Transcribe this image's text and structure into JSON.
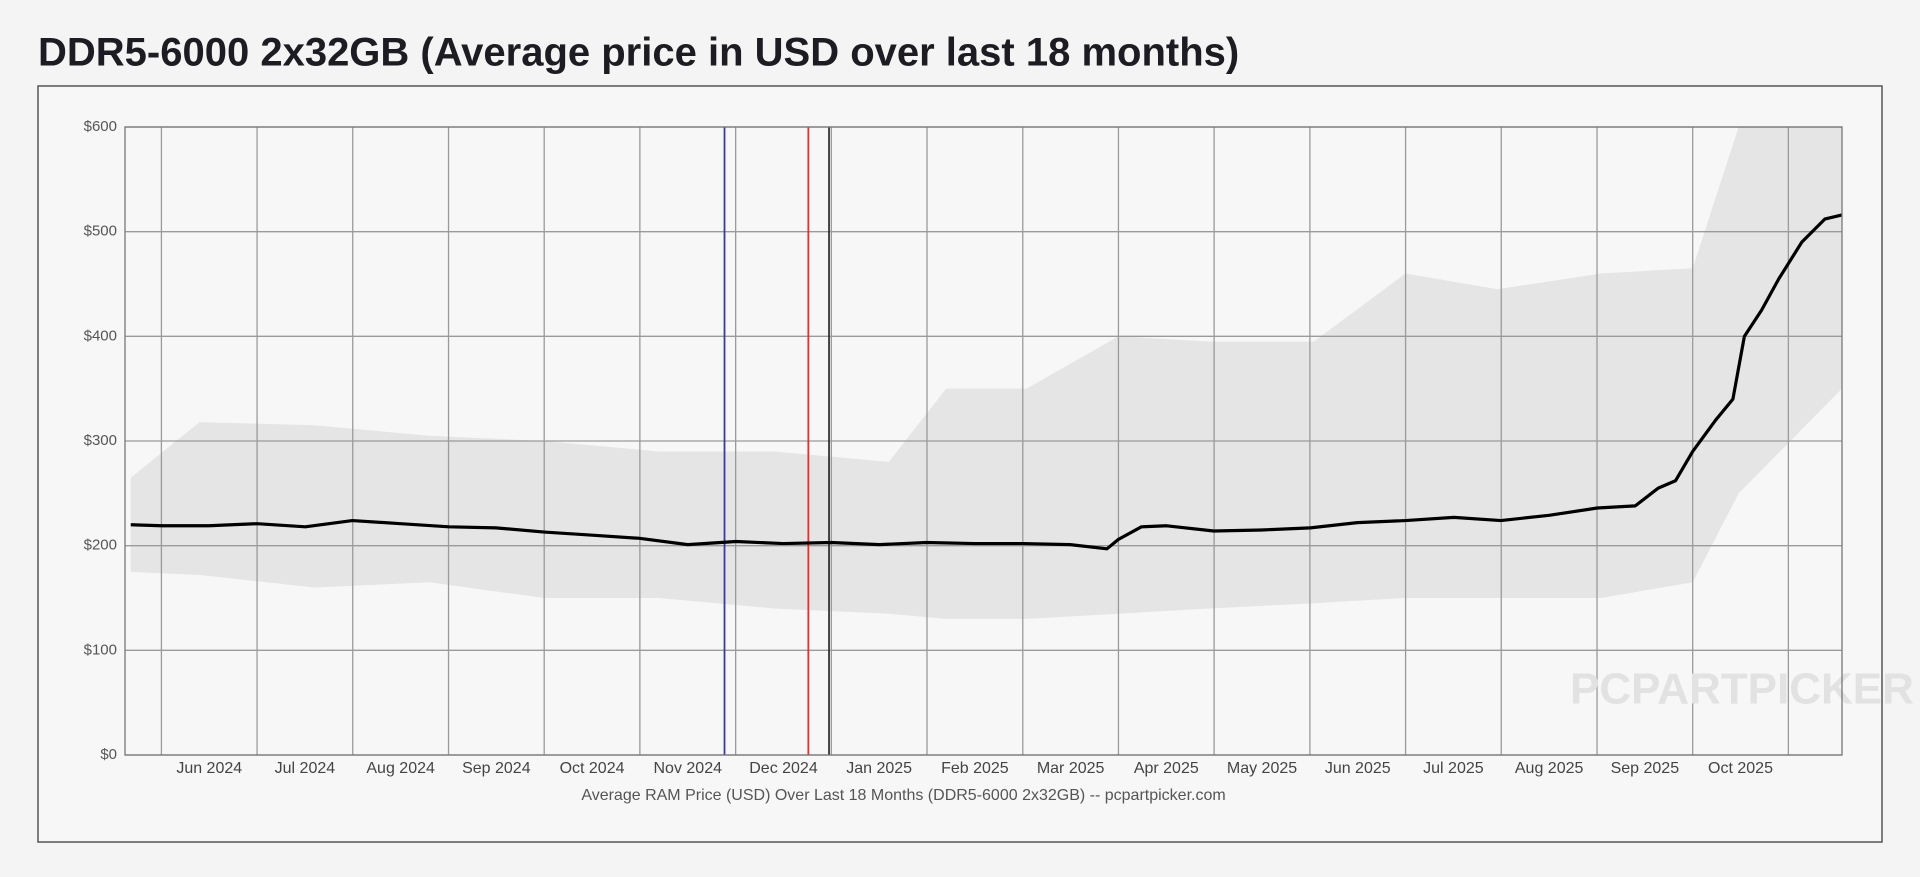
{
  "chart_data": {
    "type": "line",
    "title": "DDR5-6000 2x32GB (Average price in USD over last 18 months)",
    "x_label": "Average RAM Price (USD) Over Last 18 Months (DDR5-6000 2x32GB) -- pcpartpicker.com",
    "watermark": "PCPARTPICKER",
    "xlim": [
      2024.385,
      2025.88
    ],
    "xticks": [
      {
        "value": 2024.4167,
        "label": "Jun 2024"
      },
      {
        "value": 2024.5,
        "label": "Jul 2024"
      },
      {
        "value": 2024.5833,
        "label": "Aug 2024"
      },
      {
        "value": 2024.6667,
        "label": "Sep 2024"
      },
      {
        "value": 2024.75,
        "label": "Oct 2024"
      },
      {
        "value": 2024.8333,
        "label": "Nov 2024"
      },
      {
        "value": 2024.9167,
        "label": "Dec 2024"
      },
      {
        "value": 2025.0,
        "label": "Jan 2025"
      },
      {
        "value": 2025.0833,
        "label": "Feb 2025"
      },
      {
        "value": 2025.1667,
        "label": "Mar 2025"
      },
      {
        "value": 2025.25,
        "label": "Apr 2025"
      },
      {
        "value": 2025.3333,
        "label": "May 2025"
      },
      {
        "value": 2025.4167,
        "label": "Jun 2025"
      },
      {
        "value": 2025.5,
        "label": "Jul 2025"
      },
      {
        "value": 2025.5833,
        "label": "Aug 2025"
      },
      {
        "value": 2025.6667,
        "label": "Sep 2025"
      },
      {
        "value": 2025.75,
        "label": "Oct 2025"
      },
      {
        "value": 2025.8333,
        "label": ""
      }
    ],
    "ylim": [
      0,
      600
    ],
    "yticks": [
      {
        "value": 0,
        "label": "$0"
      },
      {
        "value": 100,
        "label": "$100"
      },
      {
        "value": 200,
        "label": "$200"
      },
      {
        "value": 300,
        "label": "$300"
      },
      {
        "value": 400,
        "label": "$400"
      },
      {
        "value": 500,
        "label": "$500"
      },
      {
        "value": 600,
        "label": "$600"
      }
    ],
    "grid": true,
    "x": [
      2024.39,
      2024.417,
      2024.458,
      2024.5,
      2024.542,
      2024.583,
      2024.625,
      2024.667,
      2024.708,
      2024.75,
      2024.792,
      2024.833,
      2024.875,
      2024.917,
      2024.958,
      2025.0,
      2025.042,
      2025.083,
      2025.125,
      2025.167,
      2025.208,
      2025.24,
      2025.25,
      2025.27,
      2025.292,
      2025.333,
      2025.375,
      2025.417,
      2025.458,
      2025.5,
      2025.542,
      2025.583,
      2025.625,
      2025.667,
      2025.7,
      2025.72,
      2025.735,
      2025.75,
      2025.77,
      2025.785,
      2025.795,
      2025.81,
      2025.825,
      2025.845,
      2025.865,
      2025.88
    ],
    "series": [
      {
        "color": "#000000",
        "values": [
          220,
          219,
          219,
          221,
          218,
          224,
          221,
          218,
          217,
          213,
          210,
          207,
          201,
          204,
          202,
          203,
          201,
          203,
          202,
          202,
          201,
          197,
          206,
          218,
          219,
          214,
          215,
          217,
          222,
          224,
          227,
          224,
          229,
          236,
          238,
          255,
          262,
          290,
          320,
          340,
          400,
          425,
          455,
          490,
          512,
          516
        ]
      }
    ],
    "range": {
      "color": "#e2e2e2",
      "x": [
        2024.39,
        2024.45,
        2024.55,
        2024.65,
        2024.75,
        2024.85,
        2024.95,
        2025.05,
        2025.1,
        2025.17,
        2025.25,
        2025.33,
        2025.42,
        2025.5,
        2025.58,
        2025.67,
        2025.75,
        2025.79,
        2025.88
      ],
      "high": [
        265,
        318,
        315,
        305,
        300,
        290,
        290,
        280,
        350,
        350,
        400,
        395,
        395,
        460,
        445,
        460,
        465,
        600,
        600
      ],
      "low": [
        175,
        172,
        160,
        165,
        150,
        150,
        140,
        135,
        130,
        130,
        135,
        140,
        145,
        150,
        150,
        150,
        165,
        250,
        350
      ]
    },
    "markers": [
      {
        "x": 2024.907,
        "color": "#3a3aa0"
      },
      {
        "x": 2024.98,
        "color": "#e03030"
      },
      {
        "x": 2024.998,
        "color": "#333333"
      }
    ]
  }
}
